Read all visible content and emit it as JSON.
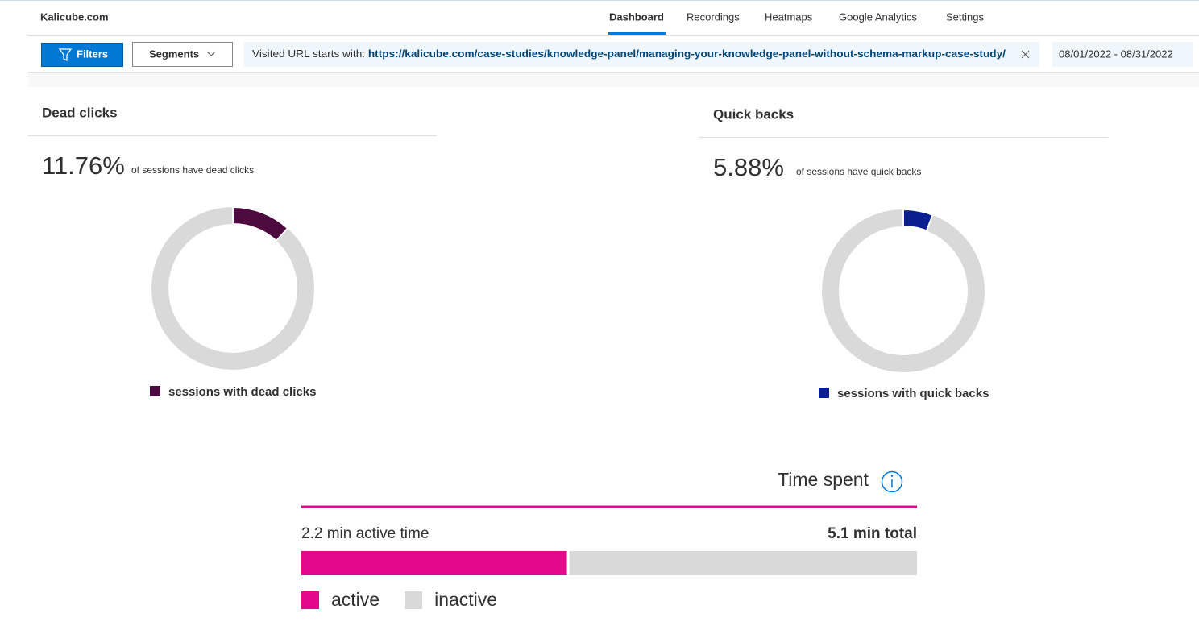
{
  "header": {
    "site": "Kalicube.com",
    "tabs": [
      "Dashboard",
      "Recordings",
      "Heatmaps",
      "Google Analytics",
      "Settings"
    ]
  },
  "toolbar": {
    "filters": "Filters",
    "segments": "Segments",
    "filter_label": "Visited URL starts with:",
    "filter_value": "https://kalicube.com/case-studies/knowledge-panel/managing-your-knowledge-panel-without-schema-markup-case-study/",
    "date_range": "08/01/2022 - 08/31/2022"
  },
  "chart_data": [
    {
      "type": "donut",
      "title": "Dead clicks",
      "caption": "of sessions have dead clicks",
      "track_color": "#d9d9d9",
      "series": [
        {
          "name": "sessions with dead clicks",
          "color": "#4d0a3e",
          "values": [
            11.76
          ],
          "value_labels": [
            "11.76%"
          ]
        }
      ]
    },
    {
      "type": "donut",
      "title": "Quick backs",
      "caption": "of sessions have quick backs",
      "track_color": "#d9d9d9",
      "series": [
        {
          "name": "sessions with quick backs",
          "color": "#0a1f8f",
          "values": [
            5.88
          ],
          "value_labels": [
            "5.88%"
          ]
        }
      ]
    },
    {
      "type": "stacked-bar",
      "title": "Time spent",
      "total": 5.1,
      "total_label": "5.1 min total",
      "series": [
        {
          "name": "active",
          "color": "#e3088c",
          "values": [
            2.2
          ],
          "value_labels": [
            "2.2 min active time"
          ]
        },
        {
          "name": "inactive",
          "color": "#d9d9d9",
          "values": [
            2.9
          ]
        }
      ]
    }
  ]
}
